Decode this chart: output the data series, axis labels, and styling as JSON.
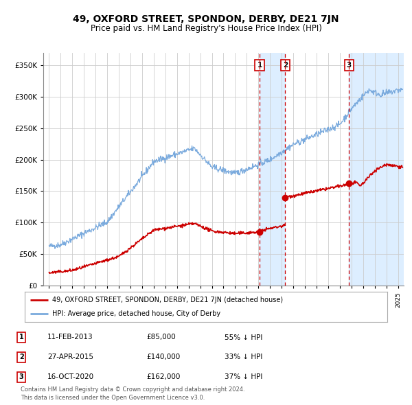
{
  "title": "49, OXFORD STREET, SPONDON, DERBY, DE21 7JN",
  "subtitle": "Price paid vs. HM Land Registry's House Price Index (HPI)",
  "title_fontsize": 10,
  "subtitle_fontsize": 8.5,
  "ylabel_ticks": [
    "£0",
    "£50K",
    "£100K",
    "£150K",
    "£200K",
    "£250K",
    "£300K",
    "£350K"
  ],
  "ytick_vals": [
    0,
    50000,
    100000,
    150000,
    200000,
    250000,
    300000,
    350000
  ],
  "ylim": [
    0,
    370000
  ],
  "xlim_start": 1994.5,
  "xlim_end": 2025.5,
  "transactions": [
    {
      "num": 1,
      "date_x": 2013.1,
      "price": 85000,
      "label": "11-FEB-2013",
      "amount": "£85,000",
      "pct": "55% ↓ HPI"
    },
    {
      "num": 2,
      "date_x": 2015.3,
      "price": 140000,
      "label": "27-APR-2015",
      "amount": "£140,000",
      "pct": "33% ↓ HPI"
    },
    {
      "num": 3,
      "date_x": 2020.79,
      "price": 162000,
      "label": "16-OCT-2020",
      "amount": "£162,000",
      "pct": "37% ↓ HPI"
    }
  ],
  "legend_line1": "49, OXFORD STREET, SPONDON, DERBY, DE21 7JN (detached house)",
  "legend_line2": "HPI: Average price, detached house, City of Derby",
  "footer": "Contains HM Land Registry data © Crown copyright and database right 2024.\nThis data is licensed under the Open Government Licence v3.0.",
  "hpi_color": "#7aaadd",
  "price_color": "#cc0000",
  "bg_color": "#ffffff",
  "grid_color": "#cccccc",
  "shade_color": "#ddeeff"
}
